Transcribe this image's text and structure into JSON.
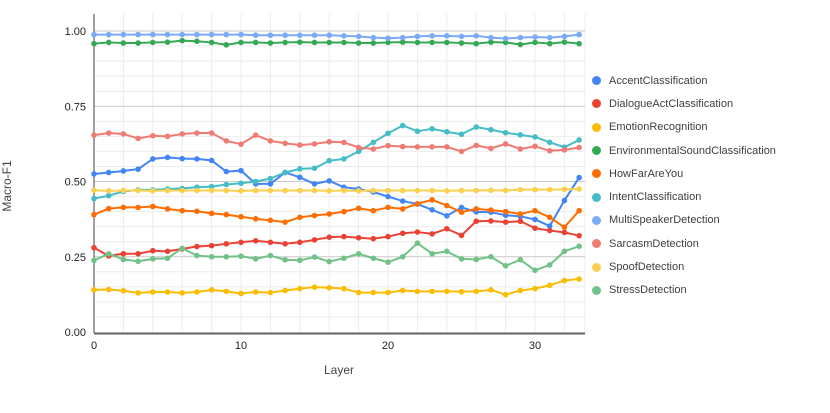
{
  "chart_data": {
    "type": "line",
    "title": "",
    "xlabel": "Layer",
    "ylabel": "Macro-F1",
    "x": [
      0,
      1,
      2,
      3,
      4,
      5,
      6,
      7,
      8,
      9,
      10,
      11,
      12,
      13,
      14,
      15,
      16,
      17,
      18,
      19,
      20,
      21,
      22,
      23,
      24,
      25,
      26,
      27,
      28,
      29,
      30,
      31,
      32,
      33
    ],
    "x_ticks": [
      0,
      10,
      20,
      30
    ],
    "y_ticks": [
      0,
      0.25,
      0.5,
      0.75,
      1
    ],
    "xlim": [
      0,
      33.4
    ],
    "ylim": [
      0,
      1.0
    ],
    "y_minor_step": 0.05,
    "x_minor_step": 2,
    "grid": true,
    "legend_position": "right",
    "marker": "circle",
    "series": [
      {
        "name": "AccentClassification",
        "color": "#4285F4",
        "values": [
          0.525,
          0.53,
          0.535,
          0.541,
          0.575,
          0.58,
          0.576,
          0.575,
          0.57,
          0.533,
          0.536,
          0.492,
          0.492,
          0.53,
          0.514,
          0.492,
          0.502,
          0.481,
          0.475,
          0.465,
          0.45,
          0.435,
          0.425,
          0.406,
          0.386,
          0.414,
          0.399,
          0.398,
          0.388,
          0.384,
          0.374,
          0.352,
          0.437,
          0.513
        ]
      },
      {
        "name": "DialogueActClassification",
        "color": "#EA4335",
        "values": [
          0.28,
          0.253,
          0.26,
          0.26,
          0.27,
          0.268,
          0.276,
          0.284,
          0.287,
          0.293,
          0.298,
          0.303,
          0.298,
          0.293,
          0.298,
          0.306,
          0.315,
          0.317,
          0.313,
          0.31,
          0.317,
          0.328,
          0.332,
          0.326,
          0.343,
          0.321,
          0.368,
          0.369,
          0.365,
          0.368,
          0.345,
          0.337,
          0.331,
          0.32
        ]
      },
      {
        "name": "EmotionRecognition",
        "color": "#FBBC04",
        "values": [
          0.14,
          0.141,
          0.137,
          0.13,
          0.133,
          0.133,
          0.13,
          0.133,
          0.14,
          0.135,
          0.128,
          0.133,
          0.131,
          0.138,
          0.144,
          0.149,
          0.147,
          0.144,
          0.131,
          0.131,
          0.131,
          0.138,
          0.135,
          0.135,
          0.135,
          0.134,
          0.135,
          0.14,
          0.124,
          0.138,
          0.144,
          0.155,
          0.171,
          0.176
        ]
      },
      {
        "name": "EnvironmentalSoundClassification",
        "color": "#34A853",
        "values": [
          0.958,
          0.962,
          0.96,
          0.96,
          0.962,
          0.963,
          0.968,
          0.966,
          0.962,
          0.954,
          0.962,
          0.962,
          0.96,
          0.962,
          0.963,
          0.962,
          0.962,
          0.962,
          0.96,
          0.96,
          0.962,
          0.963,
          0.962,
          0.962,
          0.962,
          0.96,
          0.958,
          0.963,
          0.962,
          0.955,
          0.962,
          0.958,
          0.963,
          0.958
        ]
      },
      {
        "name": "HowFarAreYou",
        "color": "#FF6D01",
        "values": [
          0.39,
          0.41,
          0.414,
          0.414,
          0.417,
          0.409,
          0.403,
          0.401,
          0.394,
          0.39,
          0.383,
          0.376,
          0.371,
          0.365,
          0.381,
          0.387,
          0.392,
          0.4,
          0.411,
          0.403,
          0.414,
          0.409,
          0.426,
          0.439,
          0.42,
          0.398,
          0.409,
          0.405,
          0.4,
          0.392,
          0.403,
          0.381,
          0.348,
          0.403
        ]
      },
      {
        "name": "IntentClassification",
        "color": "#46BDC6",
        "values": [
          0.443,
          0.453,
          0.467,
          0.472,
          0.472,
          0.475,
          0.477,
          0.481,
          0.483,
          0.49,
          0.494,
          0.5,
          0.51,
          0.53,
          0.542,
          0.544,
          0.569,
          0.575,
          0.6,
          0.63,
          0.66,
          0.686,
          0.667,
          0.675,
          0.665,
          0.657,
          0.681,
          0.672,
          0.662,
          0.655,
          0.648,
          0.63,
          0.614,
          0.638
        ]
      },
      {
        "name": "MultiSpeakerDetection",
        "color": "#7BAAF7",
        "values": [
          0.988,
          0.988,
          0.988,
          0.988,
          0.988,
          0.988,
          0.988,
          0.988,
          0.988,
          0.988,
          0.988,
          0.986,
          0.986,
          0.986,
          0.986,
          0.986,
          0.986,
          0.984,
          0.982,
          0.978,
          0.976,
          0.978,
          0.982,
          0.984,
          0.984,
          0.982,
          0.984,
          0.978,
          0.975,
          0.978,
          0.98,
          0.978,
          0.982,
          0.988
        ]
      },
      {
        "name": "SarcasmDetection",
        "color": "#F07B72",
        "values": [
          0.654,
          0.661,
          0.658,
          0.643,
          0.652,
          0.65,
          0.658,
          0.661,
          0.661,
          0.635,
          0.624,
          0.654,
          0.635,
          0.627,
          0.621,
          0.625,
          0.632,
          0.63,
          0.613,
          0.608,
          0.619,
          0.616,
          0.615,
          0.615,
          0.615,
          0.6,
          0.62,
          0.61,
          0.625,
          0.608,
          0.617,
          0.602,
          0.605,
          0.613
        ]
      },
      {
        "name": "SpoofDetection",
        "color": "#FCD04F",
        "values": [
          0.471,
          0.469,
          0.47,
          0.47,
          0.469,
          0.47,
          0.47,
          0.47,
          0.47,
          0.47,
          0.469,
          0.47,
          0.47,
          0.47,
          0.47,
          0.47,
          0.469,
          0.47,
          0.469,
          0.47,
          0.47,
          0.47,
          0.47,
          0.47,
          0.469,
          0.47,
          0.47,
          0.471,
          0.47,
          0.473,
          0.473,
          0.473,
          0.474,
          0.475
        ]
      },
      {
        "name": "StressDetection",
        "color": "#71C287",
        "values": [
          0.238,
          0.26,
          0.241,
          0.235,
          0.243,
          0.245,
          0.278,
          0.254,
          0.25,
          0.25,
          0.252,
          0.243,
          0.254,
          0.24,
          0.238,
          0.249,
          0.234,
          0.245,
          0.26,
          0.245,
          0.232,
          0.25,
          0.295,
          0.26,
          0.268,
          0.243,
          0.241,
          0.25,
          0.22,
          0.24,
          0.205,
          0.223,
          0.268,
          0.285
        ]
      }
    ]
  },
  "style": {
    "minor_grid_color": "#ececec",
    "major_grid_color": "#c9c9c9",
    "y_axis_line_color": "#424242",
    "x_axis_line_color": "#616161",
    "tick_label_color": "#1f1f1f",
    "background": "#ffffff"
  }
}
